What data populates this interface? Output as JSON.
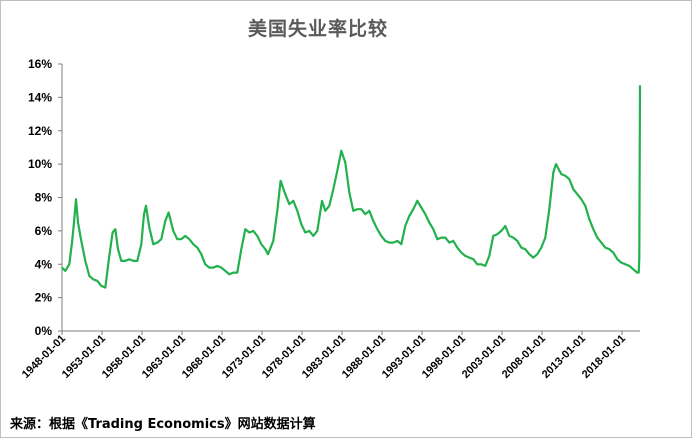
{
  "chart_data": {
    "type": "line",
    "title": "美国失业率比较",
    "xlabel": "",
    "ylabel": "",
    "ylim": [
      0,
      16
    ],
    "yticks": [
      "0%",
      "2%",
      "4%",
      "6%",
      "8%",
      "10%",
      "12%",
      "14%",
      "16%"
    ],
    "xticks": [
      "1948-01-01",
      "1953-01-01",
      "1958-01-01",
      "1963-01-01",
      "1968-01-01",
      "1973-01-01",
      "1978-01-01",
      "1983-01-01",
      "1988-01-01",
      "1993-01-01",
      "1998-01-01",
      "2003-01-01",
      "2008-01-01",
      "2013-01-01",
      "2018-01-01"
    ],
    "grid": false,
    "legend": "none",
    "line_color": "#22b14c",
    "series": [
      {
        "values": [
          [
            "1948-01-01",
            3.8
          ],
          [
            "1948-06-01",
            3.6
          ],
          [
            "1948-12-01",
            4.0
          ],
          [
            "1949-04-01",
            5.3
          ],
          [
            "1949-07-01",
            6.5
          ],
          [
            "1949-10-01",
            7.9
          ],
          [
            "1950-01-01",
            6.5
          ],
          [
            "1950-06-01",
            5.4
          ],
          [
            "1950-12-01",
            4.2
          ],
          [
            "1951-06-01",
            3.3
          ],
          [
            "1951-12-01",
            3.1
          ],
          [
            "1952-06-01",
            3.0
          ],
          [
            "1952-12-01",
            2.7
          ],
          [
            "1953-06-01",
            2.6
          ],
          [
            "1953-12-01",
            4.5
          ],
          [
            "1954-05-01",
            5.9
          ],
          [
            "1954-09-01",
            6.1
          ],
          [
            "1955-01-01",
            4.9
          ],
          [
            "1955-06-01",
            4.2
          ],
          [
            "1955-12-01",
            4.2
          ],
          [
            "1956-06-01",
            4.3
          ],
          [
            "1956-12-01",
            4.2
          ],
          [
            "1957-06-01",
            4.2
          ],
          [
            "1957-12-01",
            5.2
          ],
          [
            "1958-04-01",
            7.0
          ],
          [
            "1958-07-01",
            7.5
          ],
          [
            "1958-12-01",
            6.2
          ],
          [
            "1959-06-01",
            5.2
          ],
          [
            "1959-12-01",
            5.3
          ],
          [
            "1960-06-01",
            5.5
          ],
          [
            "1960-12-01",
            6.6
          ],
          [
            "1961-05-01",
            7.1
          ],
          [
            "1961-12-01",
            6.0
          ],
          [
            "1962-06-01",
            5.5
          ],
          [
            "1962-12-01",
            5.5
          ],
          [
            "1963-06-01",
            5.7
          ],
          [
            "1963-12-01",
            5.5
          ],
          [
            "1964-06-01",
            5.2
          ],
          [
            "1964-12-01",
            5.0
          ],
          [
            "1965-06-01",
            4.6
          ],
          [
            "1965-12-01",
            4.0
          ],
          [
            "1966-06-01",
            3.8
          ],
          [
            "1966-12-01",
            3.8
          ],
          [
            "1967-06-01",
            3.9
          ],
          [
            "1967-12-01",
            3.8
          ],
          [
            "1968-06-01",
            3.6
          ],
          [
            "1968-12-01",
            3.4
          ],
          [
            "1969-06-01",
            3.5
          ],
          [
            "1969-12-01",
            3.5
          ],
          [
            "1970-06-01",
            4.9
          ],
          [
            "1970-12-01",
            6.1
          ],
          [
            "1971-06-01",
            5.9
          ],
          [
            "1971-12-01",
            6.0
          ],
          [
            "1972-06-01",
            5.7
          ],
          [
            "1972-12-01",
            5.2
          ],
          [
            "1973-06-01",
            4.9
          ],
          [
            "1973-10-01",
            4.6
          ],
          [
            "1974-06-01",
            5.4
          ],
          [
            "1974-12-01",
            7.2
          ],
          [
            "1975-05-01",
            9.0
          ],
          [
            "1975-12-01",
            8.2
          ],
          [
            "1976-06-01",
            7.6
          ],
          [
            "1976-12-01",
            7.8
          ],
          [
            "1977-06-01",
            7.2
          ],
          [
            "1977-12-01",
            6.4
          ],
          [
            "1978-06-01",
            5.9
          ],
          [
            "1978-12-01",
            6.0
          ],
          [
            "1979-06-01",
            5.7
          ],
          [
            "1979-12-01",
            6.0
          ],
          [
            "1980-07-01",
            7.8
          ],
          [
            "1980-12-01",
            7.2
          ],
          [
            "1981-06-01",
            7.5
          ],
          [
            "1981-12-01",
            8.5
          ],
          [
            "1982-06-01",
            9.6
          ],
          [
            "1982-12-01",
            10.8
          ],
          [
            "1983-06-01",
            10.1
          ],
          [
            "1983-12-01",
            8.3
          ],
          [
            "1984-06-01",
            7.2
          ],
          [
            "1984-12-01",
            7.3
          ],
          [
            "1985-06-01",
            7.3
          ],
          [
            "1985-12-01",
            7.0
          ],
          [
            "1986-06-01",
            7.2
          ],
          [
            "1986-12-01",
            6.6
          ],
          [
            "1987-06-01",
            6.1
          ],
          [
            "1987-12-01",
            5.7
          ],
          [
            "1988-06-01",
            5.4
          ],
          [
            "1988-12-01",
            5.3
          ],
          [
            "1989-06-01",
            5.3
          ],
          [
            "1989-12-01",
            5.4
          ],
          [
            "1990-06-01",
            5.2
          ],
          [
            "1990-12-01",
            6.3
          ],
          [
            "1991-06-01",
            6.9
          ],
          [
            "1991-12-01",
            7.3
          ],
          [
            "1992-06-01",
            7.8
          ],
          [
            "1992-12-01",
            7.4
          ],
          [
            "1993-06-01",
            7.0
          ],
          [
            "1993-12-01",
            6.5
          ],
          [
            "1994-06-01",
            6.1
          ],
          [
            "1994-12-01",
            5.5
          ],
          [
            "1995-06-01",
            5.6
          ],
          [
            "1995-12-01",
            5.6
          ],
          [
            "1996-06-01",
            5.3
          ],
          [
            "1996-12-01",
            5.4
          ],
          [
            "1997-06-01",
            5.0
          ],
          [
            "1997-12-01",
            4.7
          ],
          [
            "1998-06-01",
            4.5
          ],
          [
            "1998-12-01",
            4.4
          ],
          [
            "1999-06-01",
            4.3
          ],
          [
            "1999-12-01",
            4.0
          ],
          [
            "2000-06-01",
            4.0
          ],
          [
            "2000-12-01",
            3.9
          ],
          [
            "2001-06-01",
            4.5
          ],
          [
            "2001-12-01",
            5.7
          ],
          [
            "2002-06-01",
            5.8
          ],
          [
            "2002-12-01",
            6.0
          ],
          [
            "2003-06-01",
            6.3
          ],
          [
            "2003-12-01",
            5.7
          ],
          [
            "2004-06-01",
            5.6
          ],
          [
            "2004-12-01",
            5.4
          ],
          [
            "2005-06-01",
            5.0
          ],
          [
            "2005-12-01",
            4.9
          ],
          [
            "2006-06-01",
            4.6
          ],
          [
            "2006-12-01",
            4.4
          ],
          [
            "2007-06-01",
            4.6
          ],
          [
            "2007-12-01",
            5.0
          ],
          [
            "2008-06-01",
            5.6
          ],
          [
            "2008-12-01",
            7.3
          ],
          [
            "2009-06-01",
            9.5
          ],
          [
            "2009-10-01",
            10.0
          ],
          [
            "2010-06-01",
            9.4
          ],
          [
            "2010-12-01",
            9.3
          ],
          [
            "2011-06-01",
            9.1
          ],
          [
            "2011-12-01",
            8.5
          ],
          [
            "2012-06-01",
            8.2
          ],
          [
            "2012-12-01",
            7.9
          ],
          [
            "2013-06-01",
            7.5
          ],
          [
            "2013-12-01",
            6.7
          ],
          [
            "2014-06-01",
            6.1
          ],
          [
            "2014-12-01",
            5.6
          ],
          [
            "2015-06-01",
            5.3
          ],
          [
            "2015-12-01",
            5.0
          ],
          [
            "2016-06-01",
            4.9
          ],
          [
            "2016-12-01",
            4.7
          ],
          [
            "2017-06-01",
            4.3
          ],
          [
            "2017-12-01",
            4.1
          ],
          [
            "2018-06-01",
            4.0
          ],
          [
            "2018-12-01",
            3.9
          ],
          [
            "2019-06-01",
            3.7
          ],
          [
            "2019-12-01",
            3.5
          ],
          [
            "2020-02-01",
            3.5
          ],
          [
            "2020-03-01",
            4.4
          ],
          [
            "2020-04-01",
            14.7
          ]
        ]
      }
    ]
  },
  "footer": {
    "source": "来源：根据《Trading Economics》网站数据计算"
  }
}
